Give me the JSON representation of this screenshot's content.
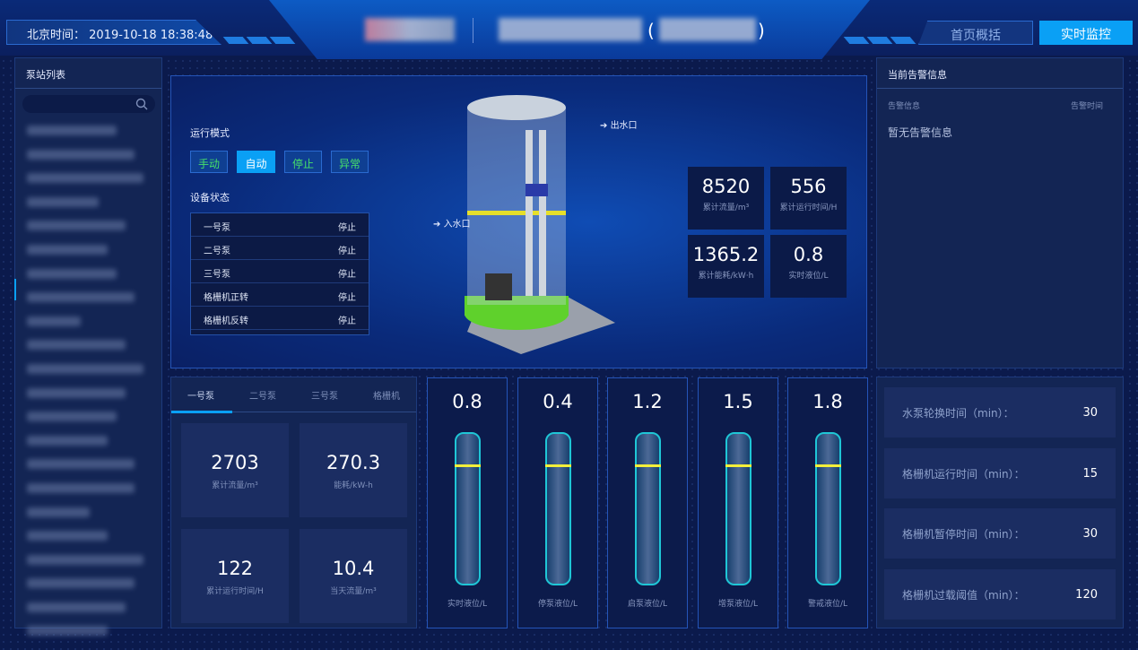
{
  "header": {
    "clock_label": "北京时间：",
    "clock_value": "2019-10-18 18:38:48",
    "nav": [
      {
        "label": "首页概括",
        "active": false
      },
      {
        "label": "实时监控",
        "active": true
      }
    ],
    "paren_open": "(",
    "paren_close": ")"
  },
  "sidebar": {
    "title": "泵站列表",
    "search_icon": "search-icon"
  },
  "center": {
    "mode_label": "运行模式",
    "modes": [
      {
        "label": "手动"
      },
      {
        "label": "自动",
        "active": true
      },
      {
        "label": "停止"
      },
      {
        "label": "异常"
      }
    ],
    "status_label": "设备状态",
    "devices": [
      {
        "name": "一号泵",
        "state": "停止"
      },
      {
        "name": "二号泵",
        "state": "停止"
      },
      {
        "name": "三号泵",
        "state": "停止"
      },
      {
        "name": "格栅机正转",
        "state": "停止"
      },
      {
        "name": "格栅机反转",
        "state": "停止"
      }
    ],
    "outlet": "出水口",
    "inlet": "入水口",
    "kpis": [
      {
        "value": "8520",
        "label": "累计流量/m³"
      },
      {
        "value": "556",
        "label": "累计运行时间/H"
      },
      {
        "value": "1365.2",
        "label": "累计能耗/kW·h"
      },
      {
        "value": "0.8",
        "label": "实时液位/L"
      }
    ]
  },
  "alarms": {
    "title": "当前告警信息",
    "col_info": "告警信息",
    "col_time": "告警时间",
    "empty": "暂无告警信息"
  },
  "pump_tabs": {
    "tabs": [
      "一号泵",
      "二号泵",
      "三号泵",
      "格栅机"
    ],
    "active": 0,
    "cards": [
      {
        "value": "2703",
        "label": "累计流量/m³"
      },
      {
        "value": "270.3",
        "label": "能耗/kW-h"
      },
      {
        "value": "122",
        "label": "累计运行时间/H"
      },
      {
        "value": "10.4",
        "label": "当天流量/m³"
      }
    ]
  },
  "levels": [
    {
      "value": "0.8",
      "label": "实时液位/L"
    },
    {
      "value": "0.4",
      "label": "停泵液位/L"
    },
    {
      "value": "1.2",
      "label": "启泵液位/L"
    },
    {
      "value": "1.5",
      "label": "增泵液位/L"
    },
    {
      "value": "1.8",
      "label": "警戒液位/L"
    }
  ],
  "settings": [
    {
      "label": "水泵轮换时间（min）：",
      "value": "30"
    },
    {
      "label": "格栅机运行时间（min）：",
      "value": "15"
    },
    {
      "label": "格栅机暂停时间（min）：",
      "value": "30"
    },
    {
      "label": "格栅机过载阈值（min）：",
      "value": "120"
    }
  ],
  "colors": {
    "accent": "#0aa0f5",
    "mode_text": "#46e06a",
    "marker": "#f3ef3a",
    "tube": "#1fc6d6"
  }
}
